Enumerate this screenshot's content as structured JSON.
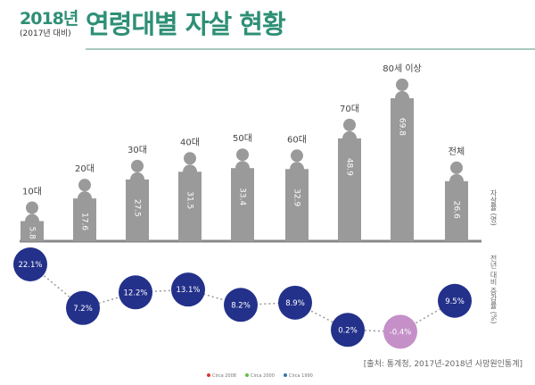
{
  "header": {
    "year": "2018년",
    "compare": "(2017년 대비)",
    "title": "연령대별 자살 현황"
  },
  "chart_data": [
    {
      "type": "bar",
      "categories": [
        "10대",
        "20대",
        "30대",
        "40대",
        "50대",
        "60대",
        "70대",
        "80세 이상",
        "전체"
      ],
      "values": [
        5.8,
        17.6,
        27.5,
        31.5,
        33.4,
        32.9,
        48.9,
        69.8,
        26.6
      ],
      "value_labels": [
        "5.8",
        "17.6",
        "27.5",
        "31.5",
        "33.4",
        "32.9",
        "48.9",
        "69.8",
        "26.6"
      ],
      "ylabel": "자살률 (명)",
      "bar_color": "#9a9a9a"
    },
    {
      "type": "line",
      "categories": [
        "10대",
        "20대",
        "30대",
        "40대",
        "50대",
        "60대",
        "70대",
        "80세 이상",
        "전체"
      ],
      "values": [
        22.1,
        7.2,
        12.2,
        13.1,
        8.2,
        8.9,
        0.2,
        -0.4,
        9.5
      ],
      "value_labels": [
        "22.1%",
        "7.2%",
        "12.2%",
        "13.1%",
        "8.2%",
        "8.9%",
        "0.2%",
        "-0.4%",
        "9.5%"
      ],
      "ylabel": "전년 대비 증감률 (%)",
      "positive_color": "#23318a",
      "negative_color": "#c58fc8"
    }
  ],
  "source": "[출처: 통계청, 2017년-2018년 사망원인통계]",
  "legend": [
    {
      "label": "Circa 2008",
      "color": "#d33"
    },
    {
      "label": "Circa 2000",
      "color": "#6b4"
    },
    {
      "label": "Circa 1990",
      "color": "#37a"
    }
  ]
}
